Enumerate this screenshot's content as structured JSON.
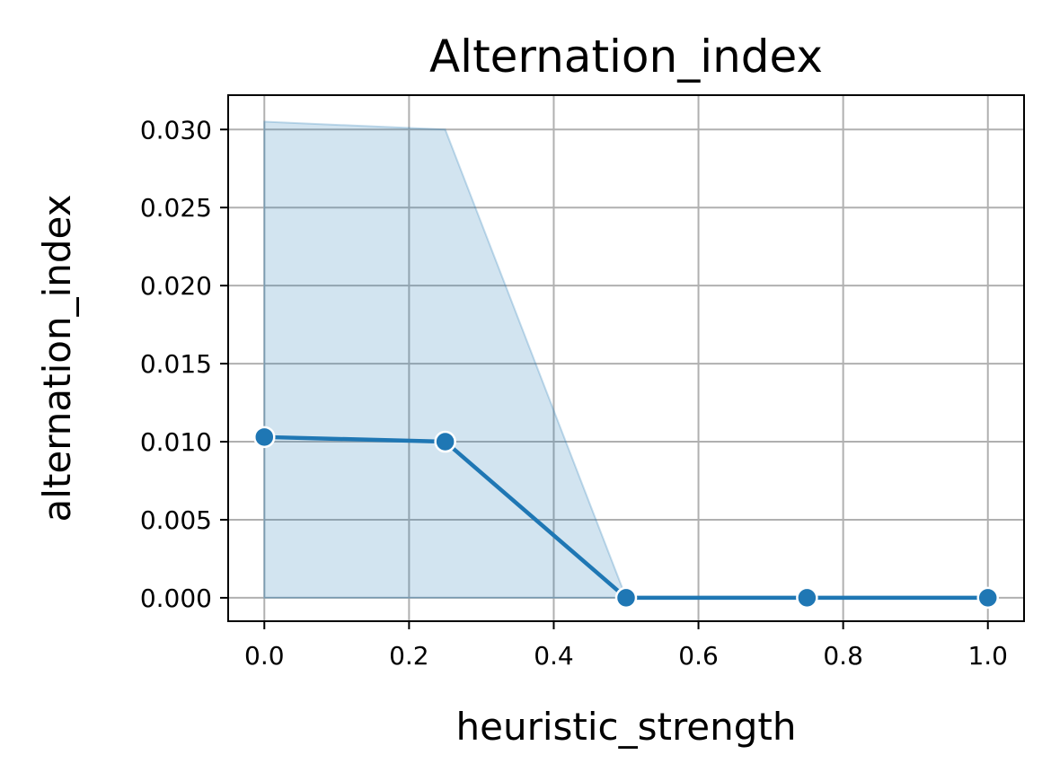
{
  "chart_data": {
    "type": "line",
    "title": "Alternation_index",
    "xlabel": "heuristic_strength",
    "ylabel": "alternation_index",
    "xlim": [
      -0.05,
      1.05
    ],
    "ylim": [
      -0.0015,
      0.0322
    ],
    "xticks": [
      0.0,
      0.2,
      0.4,
      0.6,
      0.8,
      1.0
    ],
    "xtick_labels": [
      "0.0",
      "0.2",
      "0.4",
      "0.6",
      "0.8",
      "1.0"
    ],
    "yticks": [
      0.0,
      0.005,
      0.01,
      0.015,
      0.02,
      0.025,
      0.03
    ],
    "ytick_labels": [
      "0.000",
      "0.005",
      "0.010",
      "0.015",
      "0.020",
      "0.025",
      "0.030"
    ],
    "grid": true,
    "x": [
      0.0,
      0.25,
      0.5,
      0.75,
      1.0
    ],
    "series": [
      {
        "values": [
          0.0103,
          0.01,
          0.0,
          0.0,
          0.0
        ],
        "ci_lower": [
          0.0,
          0.0,
          0.0,
          0.0,
          0.0
        ],
        "ci_upper": [
          0.0305,
          0.03,
          0.0,
          0.0,
          0.0
        ],
        "color": "#1f77b4",
        "band_color": "#1f77b4"
      }
    ]
  }
}
